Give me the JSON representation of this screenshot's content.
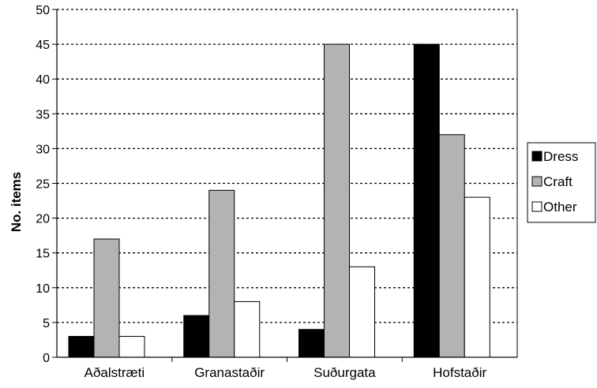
{
  "chart_data": {
    "type": "bar",
    "title": "",
    "xlabel": "",
    "ylabel": "No. items",
    "ylim": [
      0,
      50
    ],
    "yticks": [
      0,
      5,
      10,
      15,
      20,
      25,
      30,
      35,
      40,
      45,
      50
    ],
    "categories": [
      "Aðalstræti",
      "Granastaðir",
      "Suðurgata",
      "Hofstaðir"
    ],
    "series": [
      {
        "name": "Dress",
        "color": "#000000",
        "values": [
          3,
          6,
          4,
          45
        ]
      },
      {
        "name": "Craft",
        "color": "#b3b3b3",
        "values": [
          17,
          24,
          45,
          32
        ]
      },
      {
        "name": "Other",
        "color": "#ffffff",
        "values": [
          3,
          8,
          13,
          23
        ]
      }
    ],
    "grid": "horizontal dashed",
    "legend_position": "right"
  }
}
